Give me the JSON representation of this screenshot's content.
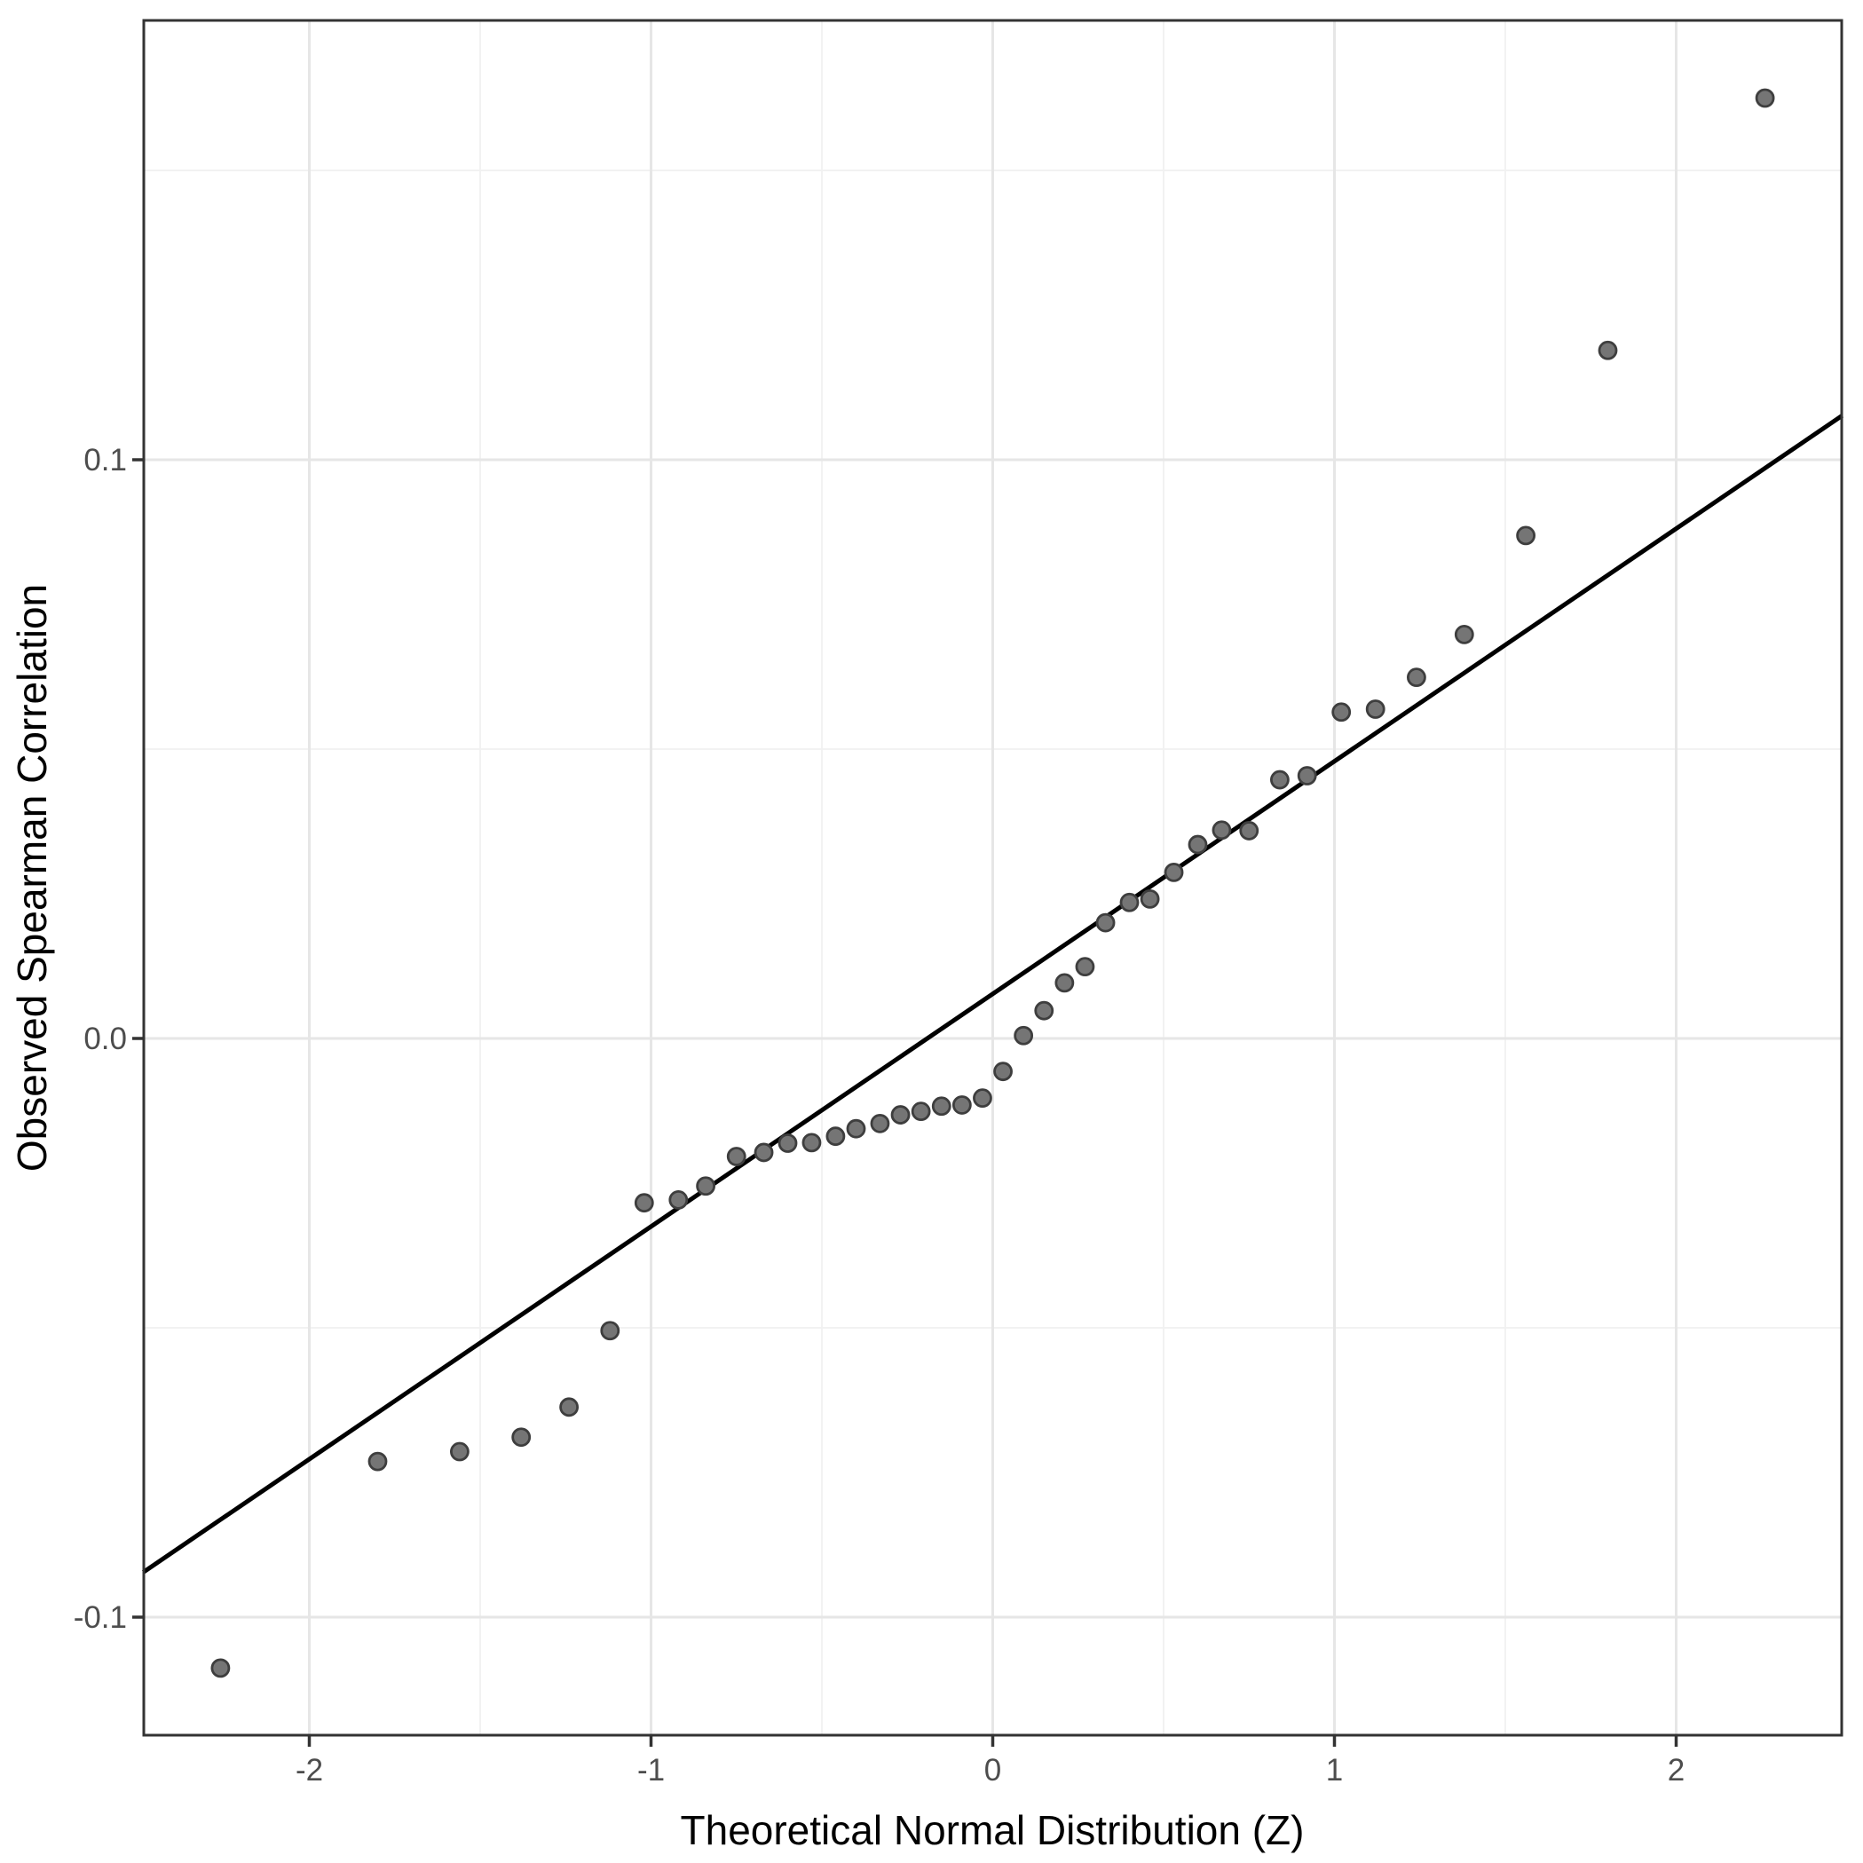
{
  "chart_data": {
    "type": "scatter",
    "title": "",
    "xlabel": "Theoretical Normal Distribution (Z)",
    "ylabel": "Observed Spearman Correlation",
    "xlim": [
      -2.486,
      2.486
    ],
    "ylim": [
      -0.1204,
      0.1759
    ],
    "grid": {
      "major": true,
      "minor": true,
      "legend": "none"
    },
    "x_major_ticks": [
      {
        "value": -2,
        "label": "-2"
      },
      {
        "value": -1,
        "label": "-1"
      },
      {
        "value": 0,
        "label": "0"
      },
      {
        "value": 1,
        "label": "1"
      },
      {
        "value": 2,
        "label": "2"
      }
    ],
    "y_major_ticks": [
      {
        "value": 0.1,
        "label": "0.1"
      },
      {
        "value": 0.0,
        "label": "0.0"
      },
      {
        "value": -0.1,
        "label": "-0.1"
      }
    ],
    "x_minor_ticks": [
      -1.5,
      -0.5,
      0.5,
      1.5
    ],
    "y_minor_ticks": [
      0.15,
      0.05,
      -0.05
    ],
    "reference_line": {
      "intercept": 0.0077,
      "slope": 0.0402
    },
    "series": [
      {
        "name": "qq-points",
        "points": [
          [
            -2.26,
            -0.1088
          ],
          [
            -1.8,
            -0.0731
          ],
          [
            -1.56,
            -0.0714
          ],
          [
            -1.38,
            -0.0689
          ],
          [
            -1.24,
            -0.0637
          ],
          [
            -1.12,
            -0.0505
          ],
          [
            -1.02,
            -0.0284
          ],
          [
            -0.92,
            -0.0279
          ],
          [
            -0.84,
            -0.0255
          ],
          [
            -0.75,
            -0.0204
          ],
          [
            -0.67,
            -0.0197
          ],
          [
            -0.6,
            -0.0181
          ],
          [
            -0.53,
            -0.018
          ],
          [
            -0.46,
            -0.0169
          ],
          [
            -0.4,
            -0.0156
          ],
          [
            -0.33,
            -0.0147
          ],
          [
            -0.27,
            -0.0132
          ],
          [
            -0.21,
            -0.0126
          ],
          [
            -0.15,
            -0.0117
          ],
          [
            -0.09,
            -0.0115
          ],
          [
            -0.03,
            -0.0103
          ],
          [
            0.03,
            -0.0057
          ],
          [
            0.09,
            0.0005
          ],
          [
            0.15,
            0.0048
          ],
          [
            0.21,
            0.0096
          ],
          [
            0.27,
            0.0124
          ],
          [
            0.33,
            0.02
          ],
          [
            0.4,
            0.0235
          ],
          [
            0.46,
            0.0241
          ],
          [
            0.53,
            0.0287
          ],
          [
            0.6,
            0.0335
          ],
          [
            0.67,
            0.036
          ],
          [
            0.75,
            0.0359
          ],
          [
            0.84,
            0.0447
          ],
          [
            0.92,
            0.0454
          ],
          [
            1.02,
            0.0564
          ],
          [
            1.12,
            0.0569
          ],
          [
            1.24,
            0.0624
          ],
          [
            1.38,
            0.0698
          ],
          [
            1.56,
            0.0869
          ],
          [
            1.8,
            0.1189
          ],
          [
            2.26,
            0.1625
          ]
        ]
      }
    ]
  },
  "axes": {
    "x": {
      "label": "Theoretical Normal Distribution (Z)"
    },
    "y": {
      "label": "Observed Spearman Correlation"
    }
  },
  "colors": {
    "background": "#ffffff",
    "panel_background": "#ffffff",
    "panel_border": "#333333",
    "grid_major": "#e6e6e6",
    "grid_minor": "#f1f1f1",
    "tick_mark": "#333333",
    "tick_label": "#4d4d4d",
    "axis_title": "#000000",
    "point_fill": "#757575",
    "point_stroke": "#3e3e3e",
    "reference_line": "#000000"
  }
}
